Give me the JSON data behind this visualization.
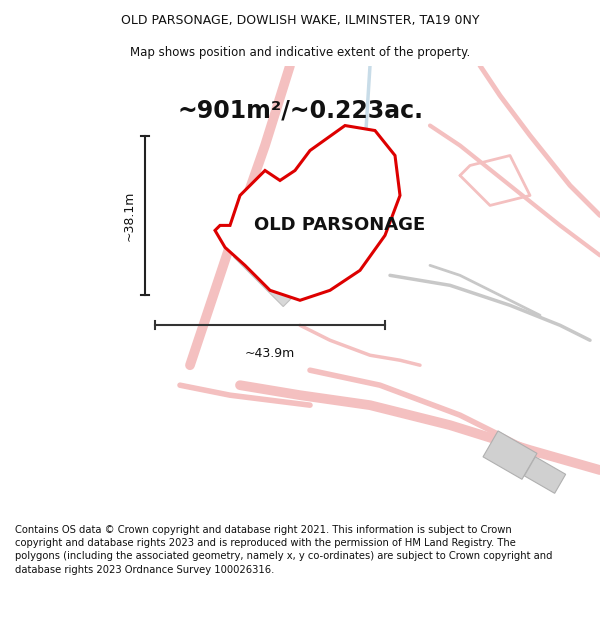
{
  "title_line1": "OLD PARSONAGE, DOWLISH WAKE, ILMINSTER, TA19 0NY",
  "title_line2": "Map shows position and indicative extent of the property.",
  "area_text": "~901m²/~0.223ac.",
  "property_label": "OLD PARSONAGE",
  "dim_vertical": "~38.1m",
  "dim_horizontal": "~43.9m",
  "footer_text": "Contains OS data © Crown copyright and database right 2021. This information is subject to Crown copyright and database rights 2023 and is reproduced with the permission of HM Land Registry. The polygons (including the associated geometry, namely x, y co-ordinates) are subject to Crown copyright and database rights 2023 Ordnance Survey 100026316.",
  "bg_color": "#ffffff",
  "map_bg_color": "#ffffff",
  "property_outline": "#dd0000",
  "road_color_pink": "#f4c0c0",
  "road_color_blue": "#c8dce8",
  "road_color_gray": "#c8c8c8",
  "building_fill": "#d8d8d8",
  "title_fontsize": 9.0,
  "area_fontsize": 17,
  "label_fontsize": 13,
  "dim_fontsize": 9,
  "footer_fontsize": 7.2,
  "title_weight": "normal",
  "property_lw": 2.2
}
